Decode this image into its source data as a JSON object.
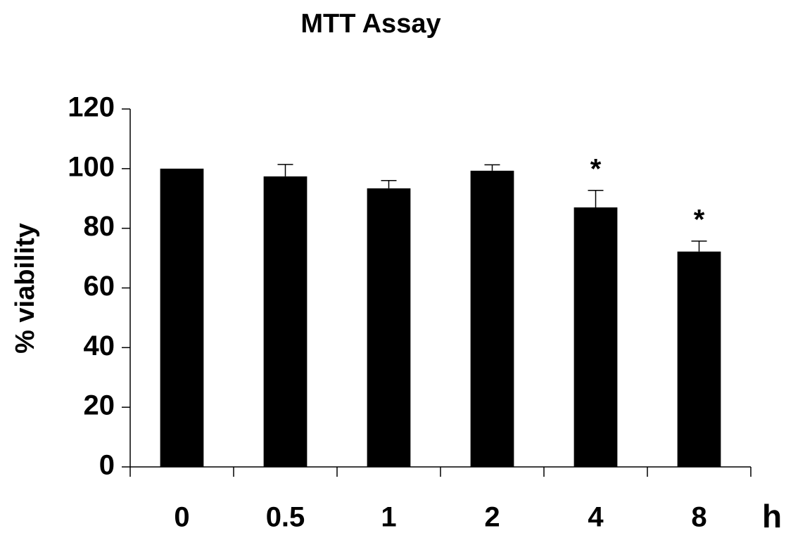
{
  "chart_data": {
    "type": "bar",
    "title": "MTT Assay",
    "x_label": "h",
    "y_label": "% viability",
    "categories": [
      "0",
      "0.5",
      "1",
      "2",
      "4",
      "8"
    ],
    "values": [
      100,
      97.4,
      93.4,
      99.3,
      87,
      72.2
    ],
    "errors": [
      null,
      4,
      2.6,
      2,
      5.7,
      3.5
    ],
    "annotations": [
      null,
      null,
      null,
      null,
      "*",
      "*"
    ],
    "color": "#000000",
    "ylim": [
      0,
      120
    ],
    "yticks": [
      0,
      20,
      40,
      60,
      80,
      100,
      120
    ],
    "grid": false
  }
}
